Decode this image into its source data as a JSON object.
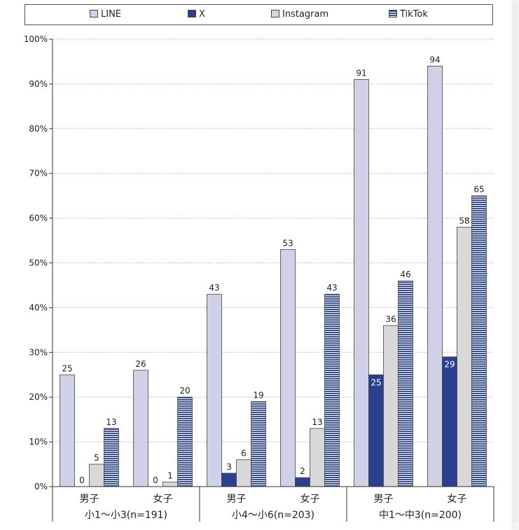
{
  "chart_data": {
    "type": "bar",
    "ylim": [
      0,
      100
    ],
    "yticks": [
      0,
      10,
      20,
      30,
      40,
      50,
      60,
      70,
      80,
      90,
      100
    ],
    "ytick_suffix": "%",
    "grid": "horizontal-dotted",
    "legend_position": "top",
    "groups": [
      {
        "label": "小1～小3(n=191)",
        "categories": [
          "男子",
          "女子"
        ]
      },
      {
        "label": "小4～小6(n=203)",
        "categories": [
          "男子",
          "女子"
        ]
      },
      {
        "label": "中1～中3(n=200)",
        "categories": [
          "男子",
          "女子"
        ]
      }
    ],
    "series": [
      {
        "name": "LINE",
        "color": "#d0d0e6",
        "pattern": "solid",
        "values": [
          25,
          26,
          43,
          53,
          91,
          94
        ]
      },
      {
        "name": "X",
        "color": "#2b3f8f",
        "pattern": "solid",
        "values": [
          0,
          0,
          3,
          2,
          25,
          29
        ]
      },
      {
        "name": "Instagram",
        "color": "#d8d8d8",
        "pattern": "solid",
        "values": [
          5,
          1,
          6,
          13,
          36,
          58
        ]
      },
      {
        "name": "TikTok",
        "color": "#3b4fa0",
        "pattern": "horizontal-stripes",
        "values": [
          13,
          20,
          19,
          43,
          46,
          65
        ]
      }
    ]
  }
}
